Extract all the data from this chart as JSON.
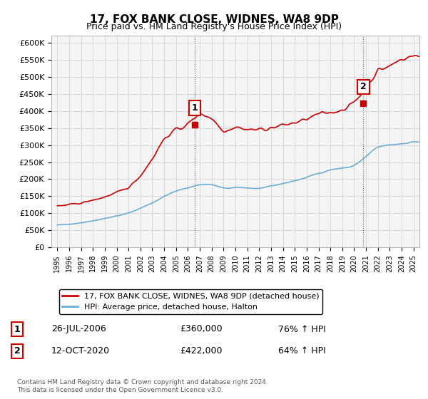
{
  "title": "17, FOX BANK CLOSE, WIDNES, WA8 9DP",
  "subtitle": "Price paid vs. HM Land Registry's House Price Index (HPI)",
  "legend_line1": "17, FOX BANK CLOSE, WIDNES, WA8 9DP (detached house)",
  "legend_line2": "HPI: Average price, detached house, Halton",
  "annotation1_label": "1",
  "annotation1_date": "26-JUL-2006",
  "annotation1_price": "£360,000",
  "annotation1_hpi": "76% ↑ HPI",
  "annotation2_label": "2",
  "annotation2_date": "12-OCT-2020",
  "annotation2_price": "£422,000",
  "annotation2_hpi": "64% ↑ HPI",
  "sale1_x": 2006.57,
  "sale1_y": 360000,
  "sale2_x": 2020.78,
  "sale2_y": 422000,
  "hpi_color": "#6baed6",
  "price_color": "#cc0000",
  "annotation_box_color": "#cc0000",
  "background_color": "#ffffff",
  "grid_color": "#cccccc",
  "ylim": [
    0,
    620000
  ],
  "xlim": [
    1994.5,
    2025.5
  ],
  "footnote": "Contains HM Land Registry data © Crown copyright and database right 2024.\nThis data is licensed under the Open Government Licence v3.0."
}
